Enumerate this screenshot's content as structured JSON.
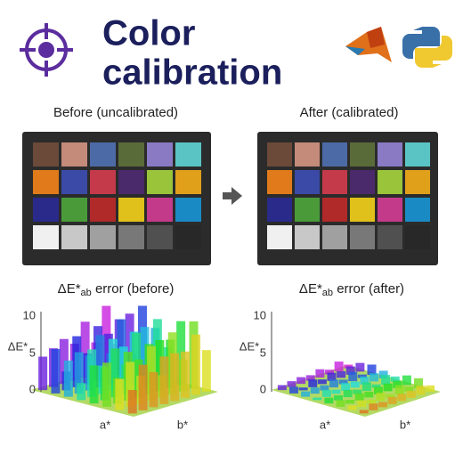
{
  "header": {
    "title_line1": "Color",
    "title_line2": "calibration"
  },
  "before": {
    "label": "Before (uncalibrated)",
    "error_label": {
      "prefix": "ΔE*",
      "subscript": "ab",
      "suffix": " error (before)"
    },
    "plot": {
      "z_label": "ΔE*",
      "ticks": [
        "10",
        "5",
        "0"
      ],
      "x_label": "a*",
      "y_label": "b*"
    }
  },
  "after": {
    "label": "After (calibrated)",
    "error_label": {
      "prefix": "ΔE*",
      "subscript": "ab",
      "suffix": " error (after)"
    },
    "plot": {
      "z_label": "ΔE*",
      "ticks": [
        "10",
        "5",
        "0"
      ],
      "x_label": "a*",
      "y_label": "b*"
    }
  }
}
